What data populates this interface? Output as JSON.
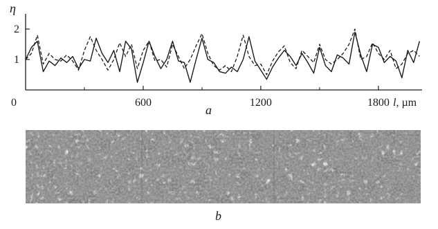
{
  "chart_data": {
    "type": "line",
    "y_axis_symbol": "η",
    "x_axis_symbol": "l",
    "x_axis_unit": ", µm",
    "x_ticks": [
      0,
      600,
      1200,
      1800
    ],
    "y_ticks": [
      1,
      2
    ],
    "xlim": [
      0,
      2030
    ],
    "ylim": [
      0,
      2.5
    ],
    "grid": false,
    "panel_a_label": "a",
    "panel_b_label": "b",
    "series": [
      {
        "style": "solid",
        "color": "#1a1a1a",
        "x": [
          0,
          30,
          60,
          90,
          120,
          150,
          180,
          210,
          240,
          270,
          300,
          330,
          360,
          390,
          420,
          450,
          480,
          510,
          540,
          570,
          600,
          630,
          660,
          690,
          720,
          750,
          780,
          810,
          840,
          870,
          900,
          930,
          960,
          990,
          1020,
          1050,
          1080,
          1110,
          1140,
          1170,
          1200,
          1230,
          1260,
          1290,
          1320,
          1350,
          1380,
          1410,
          1440,
          1470,
          1500,
          1530,
          1560,
          1590,
          1620,
          1650,
          1680,
          1710,
          1740,
          1770,
          1800,
          1830,
          1860,
          1890,
          1920,
          1950,
          1980,
          2010
        ],
        "y": [
          1.0,
          1.4,
          1.6,
          0.6,
          0.95,
          0.8,
          1.05,
          0.9,
          1.1,
          0.7,
          1.0,
          0.95,
          1.7,
          1.2,
          0.9,
          1.3,
          0.6,
          1.6,
          1.35,
          0.25,
          0.9,
          1.6,
          1.1,
          0.7,
          1.0,
          1.6,
          0.95,
          0.9,
          0.25,
          1.0,
          1.7,
          1.0,
          0.9,
          0.6,
          0.55,
          0.75,
          0.6,
          1.0,
          1.75,
          0.95,
          0.65,
          0.35,
          0.75,
          1.05,
          1.3,
          1.1,
          0.8,
          1.2,
          0.9,
          0.55,
          1.4,
          0.8,
          0.6,
          1.15,
          1.05,
          0.85,
          1.9,
          1.15,
          0.6,
          1.5,
          1.4,
          0.9,
          1.1,
          0.95,
          0.4,
          1.3,
          0.9,
          1.6
        ]
      },
      {
        "style": "dashed",
        "color": "#1a1a1a",
        "x": [
          0,
          30,
          60,
          90,
          120,
          150,
          180,
          210,
          240,
          270,
          300,
          330,
          360,
          390,
          420,
          450,
          480,
          510,
          540,
          570,
          600,
          630,
          660,
          690,
          720,
          750,
          780,
          810,
          840,
          870,
          900,
          930,
          960,
          990,
          1020,
          1050,
          1080,
          1110,
          1140,
          1170,
          1200,
          1230,
          1260,
          1290,
          1320,
          1350,
          1380,
          1410,
          1440,
          1470,
          1500,
          1530,
          1560,
          1590,
          1620,
          1650,
          1680,
          1710,
          1740,
          1770,
          1800,
          1830,
          1860,
          1890,
          1920,
          1950,
          1980,
          2010
        ],
        "y": [
          1.0,
          1.2,
          1.8,
          0.85,
          1.2,
          1.0,
          0.95,
          1.15,
          0.95,
          0.65,
          1.3,
          1.75,
          1.3,
          1.0,
          0.65,
          1.0,
          1.55,
          1.1,
          1.5,
          0.7,
          1.3,
          1.6,
          0.95,
          1.0,
          0.75,
          1.5,
          1.1,
          0.7,
          1.0,
          1.45,
          1.85,
          1.2,
          0.8,
          0.65,
          0.8,
          0.6,
          1.1,
          1.8,
          1.1,
          0.8,
          0.85,
          0.5,
          0.95,
          1.25,
          1.45,
          0.9,
          0.7,
          1.3,
          1.1,
          0.9,
          1.5,
          1.0,
          0.85,
          1.0,
          1.2,
          1.5,
          2.0,
          1.0,
          1.1,
          1.55,
          1.2,
          1.0,
          1.3,
          0.7,
          0.85,
          1.2,
          1.3,
          1.1
        ]
      }
    ]
  }
}
